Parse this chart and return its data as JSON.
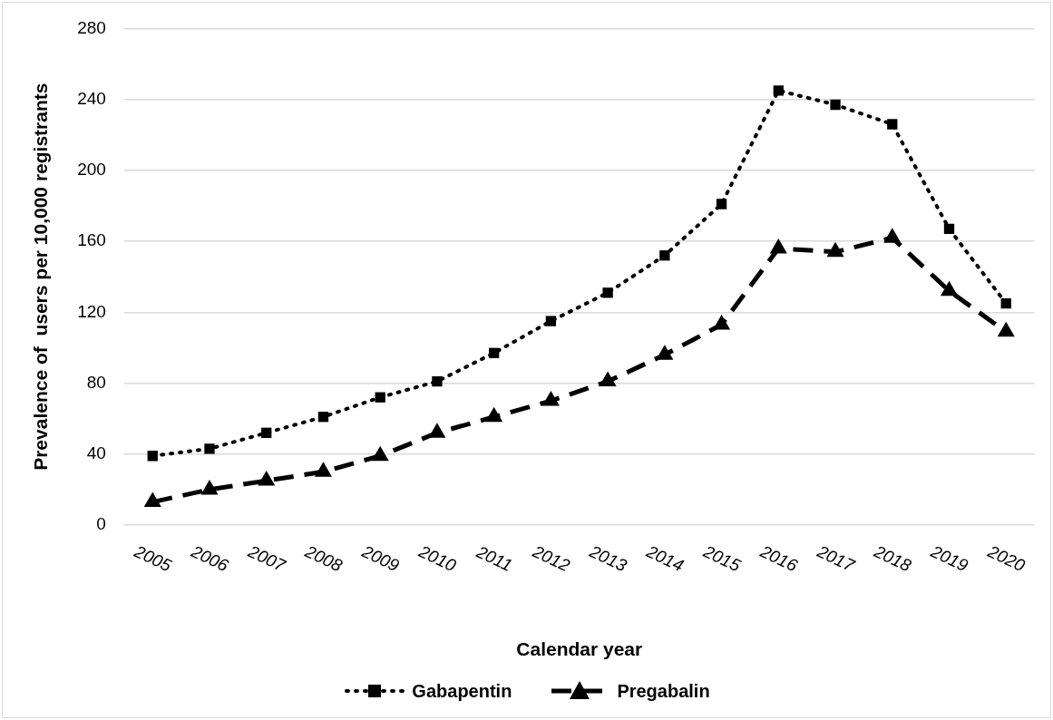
{
  "chart_data": {
    "type": "line",
    "xlabel": "Calendar year",
    "ylabel": "Prevalence of  users per 10,000 registrants",
    "categories": [
      "2005",
      "2006",
      "2007",
      "2008",
      "2009",
      "2010",
      "2011",
      "2012",
      "2013",
      "2014",
      "2015",
      "2016",
      "2017",
      "2018",
      "2019",
      "2020"
    ],
    "series": [
      {
        "name": "Gabapentin",
        "color": "#000000",
        "marker": "square",
        "line_style": "dotted",
        "values": [
          39,
          43,
          52,
          61,
          72,
          81,
          97,
          115,
          131,
          152,
          181,
          245,
          237,
          226,
          167,
          125
        ]
      },
      {
        "name": "Pregabalin",
        "color": "#000000",
        "marker": "triangle",
        "line_style": "dashed",
        "values": [
          13,
          20,
          25,
          30,
          39,
          52,
          61,
          70,
          81,
          96,
          113,
          156,
          154,
          162,
          132,
          109
        ]
      }
    ],
    "ylim": [
      0,
      280
    ],
    "yticks": [
      0,
      40,
      80,
      120,
      160,
      200,
      240,
      280
    ],
    "grid": "y",
    "legend": "bottom"
  }
}
